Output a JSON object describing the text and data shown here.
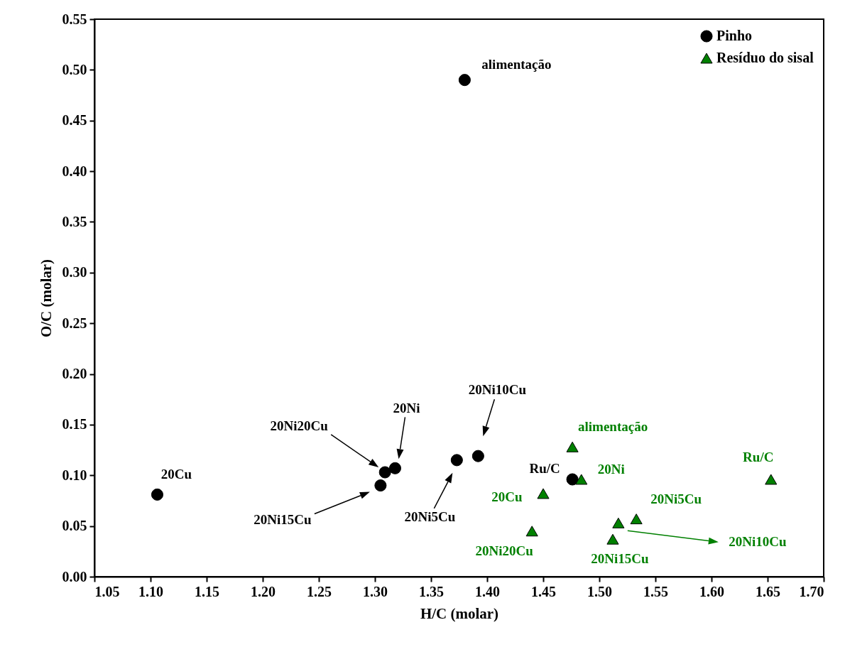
{
  "chart_data": {
    "type": "scatter",
    "xlabel": "H/C (molar)",
    "ylabel": "O/C (molar)",
    "xlim": [
      1.05,
      1.7
    ],
    "xticks": [
      {
        "value": 1.05,
        "label": "1.05"
      },
      {
        "value": 1.1,
        "label": "1.10"
      },
      {
        "value": 1.15,
        "label": "1.15"
      },
      {
        "value": 1.2,
        "label": "1.20"
      },
      {
        "value": 1.25,
        "label": "1.25"
      },
      {
        "value": 1.3,
        "label": "1.30"
      },
      {
        "value": 1.35,
        "label": "1.35"
      },
      {
        "value": 1.4,
        "label": "1.40"
      },
      {
        "value": 1.45,
        "label": "1.45"
      },
      {
        "value": 1.5,
        "label": "1.50"
      },
      {
        "value": 1.55,
        "label": "1.55"
      },
      {
        "value": 1.6,
        "label": "1.60"
      },
      {
        "value": 1.65,
        "label": "1.65"
      },
      {
        "value": 1.7,
        "label": "1.70"
      }
    ],
    "ylim": [
      0,
      0.55
    ],
    "yticks": [
      {
        "value": 0,
        "label": "0.00"
      },
      {
        "value": 0.05,
        "label": "0.05"
      },
      {
        "value": 0.1,
        "label": "0.10"
      },
      {
        "value": 0.15,
        "label": "0.15"
      },
      {
        "value": 0.2,
        "label": "0.20"
      },
      {
        "value": 0.25,
        "label": "0.25"
      },
      {
        "value": 0.3,
        "label": "0.30"
      },
      {
        "value": 0.35,
        "label": "0.35"
      },
      {
        "value": 0.4,
        "label": "0.40"
      },
      {
        "value": 0.45,
        "label": "0.45"
      },
      {
        "value": 0.5,
        "label": "0.50"
      },
      {
        "value": 0.55,
        "label": "0.55"
      }
    ],
    "grid": false,
    "legend": "top right",
    "series": [
      {
        "name": "Pinho",
        "color": "#000000",
        "marker": "circle",
        "x": [
          1.38,
          1.106,
          1.309,
          1.318,
          1.305,
          1.373,
          1.392,
          1.476
        ],
        "values": [
          0.49,
          0.081,
          0.103,
          0.107,
          0.09,
          0.115,
          0.119,
          0.096
        ]
      },
      {
        "name": "Resíduo do sisal",
        "color": "#008000",
        "marker": "triangle",
        "x": [
          1.476,
          1.484,
          1.45,
          1.44,
          1.512,
          1.533,
          1.517,
          1.653
        ],
        "values": [
          0.128,
          0.096,
          0.082,
          0.045,
          0.037,
          0.057,
          0.053,
          0.096
        ]
      }
    ],
    "annotations": [
      {
        "text": "alimentação",
        "x": 1.38,
        "y": 0.49
      },
      {
        "text": "20Cu",
        "x": 1.106,
        "y": 0.081
      },
      "20Ni20Cu",
      "20Ni",
      "20Ni15Cu",
      "20Ni5Cu",
      "20Ni10Cu",
      {
        "text": "Ru/C",
        "x": 1.476,
        "y": 0.096
      },
      {
        "text": "alimentação",
        "x": 1.476,
        "y": 0.128
      },
      {
        "text": "20Ni",
        "x": 1.484,
        "y": 0.096
      },
      {
        "text": "20Cu",
        "x": 1.45,
        "y": 0.082
      },
      {
        "text": "20Ni20Cu",
        "x": 1.44,
        "y": 0.045
      },
      {
        "text": "20Ni15Cu",
        "x": 1.512,
        "y": 0.037
      },
      {
        "text": "20Ni5Cu",
        "x": 1.533,
        "y": 0.057
      },
      "20Ni10Cu",
      {
        "text": "Ru/C",
        "x": 1.653,
        "y": 0.096
      }
    ]
  }
}
